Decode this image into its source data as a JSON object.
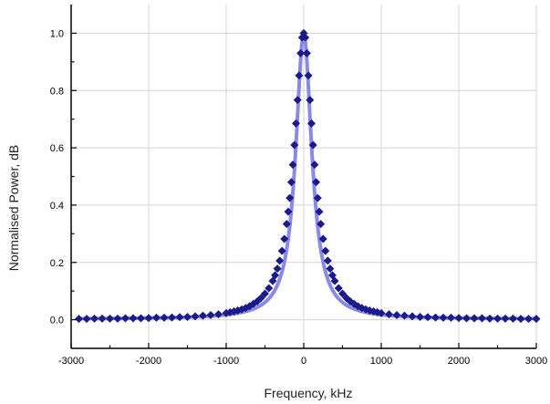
{
  "chart_data": {
    "type": "scatter",
    "title": "",
    "xlabel": "Frequency, kHz",
    "ylabel": "Normalised Power, dB",
    "xlim": [
      -3000,
      3000
    ],
    "ylim": [
      -0.1,
      1.1
    ],
    "grid": true,
    "x_ticks": [
      -3000,
      -2000,
      -1000,
      0,
      1000,
      2000,
      3000
    ],
    "y_ticks": [
      0.0,
      0.2,
      0.4,
      0.6,
      0.8,
      1.0
    ],
    "x_tick_labels": [
      "-3000",
      "-2000",
      "-1000",
      "0",
      "1000",
      "2000",
      "3000"
    ],
    "y_tick_labels": [
      "0.0",
      "0.2",
      "0.4",
      "0.6",
      "0.8",
      "1.0"
    ],
    "colors": {
      "markers": "#1a1a8c",
      "fit_line": "#8a8ae6",
      "grid": "#d3d3d3",
      "axes": "#000000"
    },
    "series": [
      {
        "type": "scatter",
        "marker": "diamond",
        "x": [
          -2900,
          -2800,
          -2700,
          -2600,
          -2500,
          -2400,
          -2300,
          -2200,
          -2100,
          -2000,
          -1900,
          -1800,
          -1700,
          -1600,
          -1500,
          -1400,
          -1300,
          -1200,
          -1100,
          -1000,
          -950,
          -900,
          -850,
          -800,
          -750,
          -700,
          -650,
          -600,
          -550,
          -500,
          -450,
          -400,
          -370,
          -340,
          -310,
          -280,
          -250,
          -220,
          -200,
          -180,
          -160,
          -140,
          -120,
          -100,
          -80,
          -60,
          -40,
          -20,
          0,
          20,
          40,
          60,
          80,
          100,
          120,
          140,
          160,
          180,
          200,
          220,
          250,
          280,
          310,
          340,
          370,
          400,
          450,
          500,
          550,
          600,
          650,
          700,
          750,
          800,
          850,
          900,
          950,
          1000,
          1100,
          1200,
          1300,
          1400,
          1500,
          1600,
          1700,
          1800,
          1900,
          2000,
          2100,
          2200,
          2300,
          2400,
          2500,
          2600,
          2700,
          2800,
          2900,
          3000
        ],
        "y": [
          0.003,
          0.003,
          0.004,
          0.004,
          0.004,
          0.004,
          0.005,
          0.005,
          0.005,
          0.006,
          0.007,
          0.007,
          0.008,
          0.009,
          0.01,
          0.012,
          0.014,
          0.016,
          0.019,
          0.023,
          0.026,
          0.029,
          0.032,
          0.036,
          0.041,
          0.047,
          0.055,
          0.064,
          0.076,
          0.091,
          0.11,
          0.135,
          0.155,
          0.178,
          0.206,
          0.24,
          0.282,
          0.334,
          0.377,
          0.425,
          0.48,
          0.541,
          0.61,
          0.685,
          0.767,
          0.852,
          0.93,
          0.985,
          1.0,
          0.985,
          0.93,
          0.852,
          0.767,
          0.685,
          0.61,
          0.541,
          0.48,
          0.425,
          0.377,
          0.334,
          0.282,
          0.24,
          0.206,
          0.178,
          0.155,
          0.135,
          0.11,
          0.091,
          0.076,
          0.064,
          0.055,
          0.047,
          0.041,
          0.036,
          0.032,
          0.029,
          0.026,
          0.023,
          0.019,
          0.016,
          0.014,
          0.012,
          0.01,
          0.009,
          0.008,
          0.007,
          0.007,
          0.006,
          0.005,
          0.005,
          0.005,
          0.004,
          0.004,
          0.004,
          0.004,
          0.003,
          0.003,
          0.003
        ]
      },
      {
        "type": "line",
        "lorentzian_center": 0,
        "lorentzian_half_width": 125,
        "baseline": 0.002
      }
    ]
  }
}
